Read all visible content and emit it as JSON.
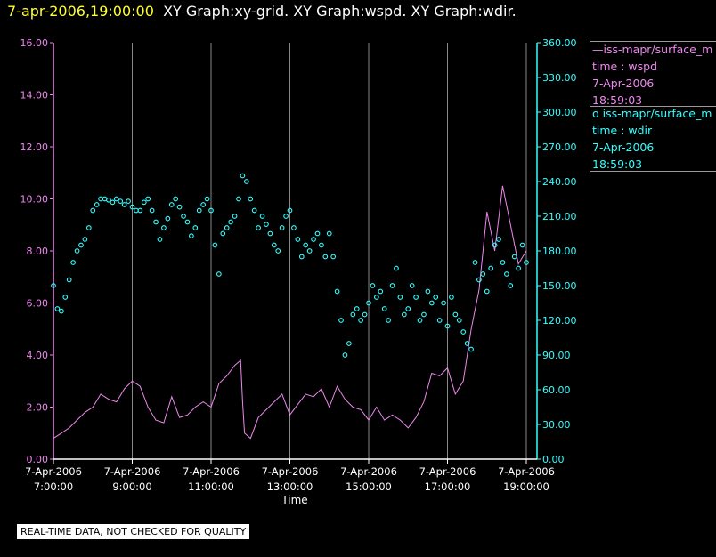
{
  "header": {
    "timestamp": "7-apr-2006,19:00:00",
    "graphs": "XY Graph:xy-grid.  XY Graph:wspd.  XY Graph:wdir."
  },
  "legend": [
    {
      "line": "—iss-mapr/surface_m",
      "var": "time : wspd",
      "date": "7-Apr-2006",
      "time": "18:59:03"
    },
    {
      "line": "o  iss-mapr/surface_m",
      "var": "time : wdir",
      "date": "7-Apr-2006",
      "time": "18:59:03"
    }
  ],
  "footer_note": "REAL-TIME DATA, NOT CHECKED FOR QUALITY",
  "chart_data": {
    "type": "line",
    "xlabel": "Time",
    "x_ticks": [
      {
        "date": "7-Apr-2006",
        "time": "7:00:00",
        "hours": 7
      },
      {
        "date": "7-Apr-2006",
        "time": "9:00:00",
        "hours": 9
      },
      {
        "date": "7-Apr-2006",
        "time": "11:00:00",
        "hours": 11
      },
      {
        "date": "7-Apr-2006",
        "time": "13:00:00",
        "hours": 13
      },
      {
        "date": "7-Apr-2006",
        "time": "15:00:00",
        "hours": 15
      },
      {
        "date": "7-Apr-2006",
        "time": "17:00:00",
        "hours": 17
      },
      {
        "date": "7-Apr-2006",
        "time": "19:00:00",
        "hours": 19
      }
    ],
    "xlim": [
      7,
      19.1
    ],
    "y_left": {
      "ylim": [
        0,
        16
      ],
      "ticks": [
        "0.00",
        "2.00",
        "4.00",
        "6.00",
        "8.00",
        "10.00",
        "12.00",
        "14.00",
        "16.00"
      ],
      "color": "#ee88ee"
    },
    "y_right": {
      "ylim": [
        0,
        360
      ],
      "ticks": [
        "0.00",
        "30.00",
        "60.00",
        "90.00",
        "120.00",
        "150.00",
        "180.00",
        "210.00",
        "240.00",
        "270.00",
        "300.00",
        "330.00",
        "360.00"
      ],
      "color": "#33ffff"
    },
    "grid": "vertical",
    "series": [
      {
        "axis": "left",
        "style": "line",
        "color": "#ee88ee",
        "x": [
          7,
          7.2,
          7.4,
          7.6,
          7.8,
          8.0,
          8.2,
          8.4,
          8.6,
          8.8,
          9.0,
          9.2,
          9.4,
          9.6,
          9.8,
          10.0,
          10.2,
          10.4,
          10.6,
          10.8,
          11.0,
          11.2,
          11.4,
          11.6,
          11.75,
          11.8,
          11.85,
          12.0,
          12.2,
          12.4,
          12.6,
          12.8,
          13.0,
          13.2,
          13.4,
          13.6,
          13.8,
          14.0,
          14.2,
          14.4,
          14.6,
          14.8,
          15.0,
          15.2,
          15.4,
          15.6,
          15.8,
          16.0,
          16.2,
          16.4,
          16.6,
          16.8,
          17.0,
          17.2,
          17.4,
          17.6,
          17.8,
          18.0,
          18.2,
          18.4,
          18.6,
          18.8,
          19.0
        ],
        "y": [
          0.8,
          1.0,
          1.2,
          1.5,
          1.8,
          2.0,
          2.5,
          2.3,
          2.2,
          2.7,
          3.0,
          2.8,
          2.0,
          1.5,
          1.4,
          2.4,
          1.6,
          1.7,
          2.0,
          2.2,
          2.0,
          2.9,
          3.2,
          3.6,
          3.8,
          2.2,
          1.0,
          0.8,
          1.6,
          1.9,
          2.2,
          2.5,
          1.7,
          2.1,
          2.5,
          2.4,
          2.7,
          2.0,
          2.8,
          2.3,
          2.0,
          1.9,
          1.5,
          2.0,
          1.5,
          1.7,
          1.5,
          1.2,
          1.6,
          2.2,
          3.3,
          3.2,
          3.5,
          2.5,
          3.0,
          5.0,
          6.5,
          9.5,
          8.0,
          10.5,
          9.0,
          7.5,
          8.0
        ]
      },
      {
        "axis": "right",
        "style": "points",
        "color": "#33ffff",
        "x": [
          7.0,
          7.1,
          7.2,
          7.3,
          7.4,
          7.5,
          7.6,
          7.7,
          7.8,
          7.9,
          8.0,
          8.1,
          8.2,
          8.3,
          8.4,
          8.5,
          8.6,
          8.7,
          8.8,
          8.9,
          9.0,
          9.1,
          9.2,
          9.3,
          9.4,
          9.5,
          9.6,
          9.7,
          9.8,
          9.9,
          10.0,
          10.1,
          10.2,
          10.3,
          10.4,
          10.5,
          10.6,
          10.7,
          10.8,
          10.9,
          11.0,
          11.1,
          11.2,
          11.3,
          11.4,
          11.5,
          11.6,
          11.7,
          11.8,
          11.9,
          12.0,
          12.1,
          12.2,
          12.3,
          12.4,
          12.5,
          12.6,
          12.7,
          12.8,
          12.9,
          13.0,
          13.1,
          13.2,
          13.3,
          13.4,
          13.5,
          13.6,
          13.7,
          13.8,
          13.9,
          14.0,
          14.1,
          14.2,
          14.3,
          14.4,
          14.5,
          14.6,
          14.7,
          14.8,
          14.9,
          15.0,
          15.1,
          15.2,
          15.3,
          15.4,
          15.5,
          15.6,
          15.7,
          15.8,
          15.9,
          16.0,
          16.1,
          16.2,
          16.3,
          16.4,
          16.5,
          16.6,
          16.7,
          16.8,
          16.9,
          17.0,
          17.1,
          17.2,
          17.3,
          17.4,
          17.5,
          17.6,
          17.7,
          17.8,
          17.9,
          18.0,
          18.1,
          18.2,
          18.3,
          18.4,
          18.5,
          18.6,
          18.7,
          18.8,
          18.9,
          19.0
        ],
        "y": [
          150,
          130,
          128,
          140,
          155,
          170,
          180,
          185,
          190,
          200,
          215,
          220,
          225,
          225,
          224,
          222,
          225,
          223,
          220,
          223,
          218,
          215,
          215,
          222,
          225,
          215,
          205,
          190,
          200,
          208,
          220,
          225,
          218,
          210,
          205,
          193,
          200,
          215,
          220,
          225,
          215,
          185,
          160,
          195,
          200,
          205,
          210,
          225,
          245,
          240,
          225,
          215,
          200,
          210,
          203,
          195,
          185,
          180,
          200,
          210,
          215,
          200,
          190,
          175,
          185,
          180,
          190,
          195,
          185,
          175,
          195,
          175,
          145,
          120,
          90,
          100,
          125,
          130,
          120,
          125,
          135,
          150,
          140,
          145,
          130,
          120,
          150,
          165,
          140,
          125,
          130,
          150,
          140,
          120,
          125,
          145,
          135,
          140,
          120,
          135,
          115,
          140,
          125,
          120,
          110,
          100,
          95,
          170,
          155,
          160,
          145,
          165,
          185,
          190,
          170,
          160,
          150,
          175,
          165,
          185,
          170
        ]
      }
    ]
  }
}
